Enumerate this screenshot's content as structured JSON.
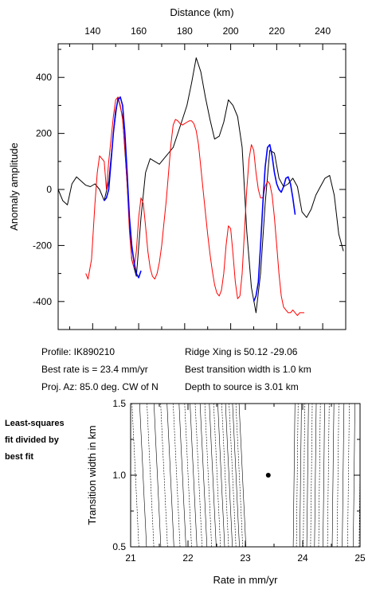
{
  "chart_data": [
    {
      "type": "line",
      "xlabel": "Distance (km)",
      "ylabel": "Anomaly amplitude",
      "xlim": [
        125,
        250
      ],
      "ylim": [
        -500,
        520
      ],
      "x_ticks": [
        140,
        160,
        180,
        200,
        220,
        240
      ],
      "y_ticks": [
        -400,
        -200,
        0,
        200,
        400
      ],
      "series": [
        {
          "color": "#000000",
          "x": [
            125,
            127,
            129,
            131,
            133,
            135,
            137,
            139,
            141,
            143,
            145,
            147,
            149,
            151,
            153,
            155,
            157,
            159,
            161,
            163,
            165,
            167,
            169,
            171,
            173,
            175,
            177,
            179,
            181,
            183,
            185,
            187,
            189,
            191,
            193,
            195,
            197,
            199,
            201,
            203,
            205,
            207,
            209,
            211,
            213,
            215,
            217,
            219,
            221,
            223,
            225,
            227,
            229,
            231,
            233,
            235,
            237,
            239,
            241,
            243,
            245,
            247,
            249
          ],
          "y": [
            0,
            -40,
            -55,
            20,
            45,
            30,
            15,
            10,
            20,
            0,
            -40,
            30,
            200,
            330,
            260,
            20,
            -250,
            -310,
            -100,
            60,
            110,
            100,
            90,
            110,
            130,
            150,
            200,
            250,
            300,
            380,
            470,
            420,
            330,
            250,
            180,
            190,
            240,
            320,
            300,
            260,
            150,
            -150,
            -350,
            -440,
            -300,
            -50,
            140,
            130,
            40,
            10,
            20,
            40,
            10,
            -80,
            -100,
            -70,
            -20,
            10,
            40,
            50,
            -20,
            -160,
            -220
          ]
        },
        {
          "color": "#ff0000",
          "x": [
            137,
            138,
            139.5,
            141,
            142,
            143,
            145,
            146,
            147,
            149,
            150,
            151,
            152,
            153,
            154,
            155,
            156,
            157,
            158,
            159,
            160,
            161,
            162,
            163,
            164,
            165,
            166,
            167,
            168,
            169,
            170,
            171,
            172,
            173,
            174,
            175,
            176,
            177,
            178,
            179,
            180,
            181,
            182,
            183,
            184,
            185,
            186,
            187,
            188,
            189,
            190,
            191,
            192,
            193,
            194,
            195,
            196,
            197,
            198,
            199,
            200,
            201,
            202,
            203,
            204,
            205,
            206,
            207,
            208,
            209,
            210,
            211,
            212,
            213,
            214,
            215,
            216,
            217,
            218,
            219,
            220,
            221,
            222,
            223,
            224,
            225,
            226,
            227,
            228,
            229,
            230,
            231,
            232
          ],
          "y": [
            -300,
            -320,
            -250,
            -50,
            60,
            120,
            100,
            0,
            100,
            260,
            320,
            330,
            300,
            250,
            150,
            20,
            -150,
            -250,
            -280,
            -220,
            -100,
            -30,
            -50,
            -130,
            -220,
            -280,
            -310,
            -320,
            -300,
            -260,
            -200,
            -120,
            -40,
            60,
            160,
            230,
            250,
            245,
            235,
            230,
            235,
            240,
            245,
            245,
            235,
            210,
            160,
            80,
            0,
            -80,
            -160,
            -230,
            -290,
            -340,
            -370,
            -380,
            -360,
            -300,
            -200,
            -130,
            -140,
            -230,
            -330,
            -390,
            -380,
            -300,
            -150,
            0,
            110,
            160,
            140,
            60,
            0,
            -30,
            -30,
            10,
            30,
            20,
            -20,
            -100,
            -200,
            -300,
            -380,
            -420,
            -430,
            -440,
            -440,
            -430,
            -440,
            -450,
            -440,
            -440,
            -440
          ]
        },
        {
          "color": "#0000ff",
          "x": [
            145,
            146,
            147,
            148,
            149,
            150,
            151,
            152,
            153,
            154,
            155,
            156,
            157,
            158,
            159,
            160,
            161
          ],
          "y": [
            -40,
            -30,
            0,
            100,
            200,
            280,
            320,
            330,
            300,
            200,
            60,
            -100,
            -200,
            -260,
            -300,
            -315,
            -290
          ]
        },
        {
          "color": "#0000ff",
          "x": [
            210,
            211,
            212,
            213,
            214,
            215,
            216,
            217,
            218,
            219,
            220,
            221,
            222,
            223,
            224,
            225,
            226,
            227,
            228
          ],
          "y": [
            -400,
            -380,
            -330,
            -200,
            -50,
            80,
            150,
            160,
            120,
            60,
            20,
            0,
            -10,
            10,
            40,
            45,
            20,
            -30,
            -90
          ]
        }
      ]
    },
    {
      "type": "contour",
      "xlabel": "Rate in mm/yr",
      "ylabel": "Transition width in km",
      "xlim": [
        21,
        25
      ],
      "ylim": [
        0.5,
        1.5
      ],
      "x_ticks": [
        "21",
        "22",
        "23",
        "24",
        "25"
      ],
      "y_ticks": [
        "0.5",
        "1.0",
        "1.5"
      ],
      "best_fit_point": {
        "x": 23.4,
        "y": 1.0
      }
    }
  ],
  "info": {
    "profile": "Profile: IK890210",
    "best_rate": "Best rate is = 23.4 mm/yr",
    "proj_az": "Proj. Az: 85.0 deg. CW of N",
    "ridge_xing": "Ridge Xing is 50.12 -29.06",
    "best_transition": "Best transition width is 1.0 km",
    "depth": "Depth to source is   3.01 km"
  },
  "side_note": {
    "line1": "Least-squares",
    "line2": "fit divided by",
    "line3": "best fit"
  }
}
